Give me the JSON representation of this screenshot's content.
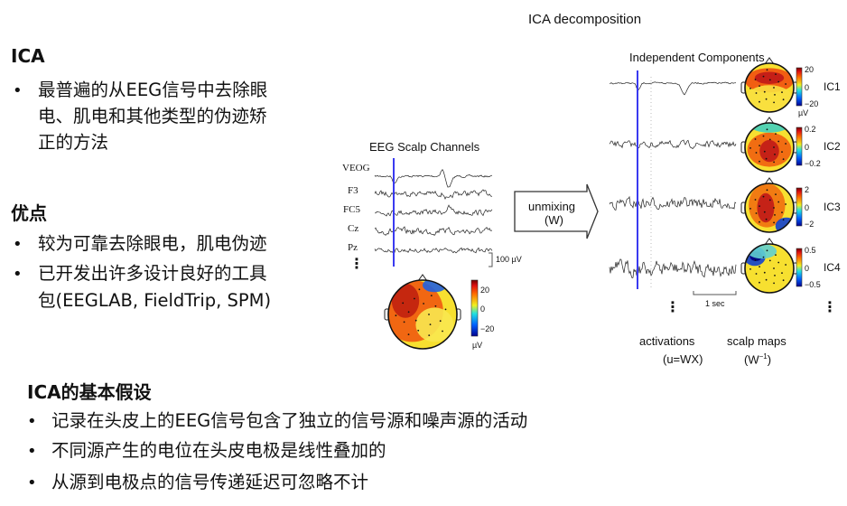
{
  "left": {
    "ica_title": "ICA",
    "ica_bullets": [
      "最普遍的从EEG信号中去除眼电、肌电和其他类型的伪迹矫正的方法"
    ],
    "ica_bullet_lines": [
      "最普遍的从EEG信号中去除眼",
      "电、肌电和其他类型的伪迹矫",
      "正的方法"
    ],
    "advantages_title": "优点",
    "advantages": [
      "较为可靠去除眼电，肌电伪迹",
      "已开发出许多设计良好的工具包(EEGLAB, FieldTrip, SPM)"
    ],
    "advantage2_lines": [
      "已开发出许多设计良好的工具",
      "包(EEGLAB, FieldTrip, SPM)"
    ],
    "bullet": "•"
  },
  "assumptions": {
    "title": "ICA的基本假设",
    "items": [
      "记录在头皮上的EEG信号包含了独立的信号源和噪声源的活动",
      "不同源产生的电位在头皮电极是线性叠加的",
      "从源到电极点的信号传递延迟可忽略不计"
    ]
  },
  "figure": {
    "title": "ICA decomposition",
    "scalp_title": "EEG Scalp Channels",
    "channels": [
      "VEOG",
      "F3",
      "FC5",
      "Cz",
      "Pz"
    ],
    "ellipsis": "⋮",
    "scale_label": "100 µV",
    "scalp_colorbar": {
      "max": "20",
      "mid": "0",
      "min": "−20",
      "unit": "µV"
    },
    "arrow_label_1": "unmixing",
    "arrow_label_2": "(W)",
    "ic_title": "Independent Components",
    "components": [
      {
        "label": "IC1",
        "max": "20",
        "mid": "0",
        "min": "−20",
        "unit": "µV"
      },
      {
        "label": "IC2",
        "max": "0.2",
        "mid": "0",
        "min": "−0.2"
      },
      {
        "label": "IC3",
        "max": "2",
        "mid": "0",
        "min": "−2"
      },
      {
        "label": "IC4",
        "max": "0.5",
        "mid": "0",
        "min": "−0.5"
      }
    ],
    "time_scale": "1 sec",
    "activations_label": "activations",
    "activations_formula": "(u=WX)",
    "scalp_maps_label": "scalp maps",
    "scalp_maps_formula": "(W",
    "scalp_maps_sup": "−1",
    "scalp_maps_close": ")",
    "marker_color": "#3a3af0"
  }
}
